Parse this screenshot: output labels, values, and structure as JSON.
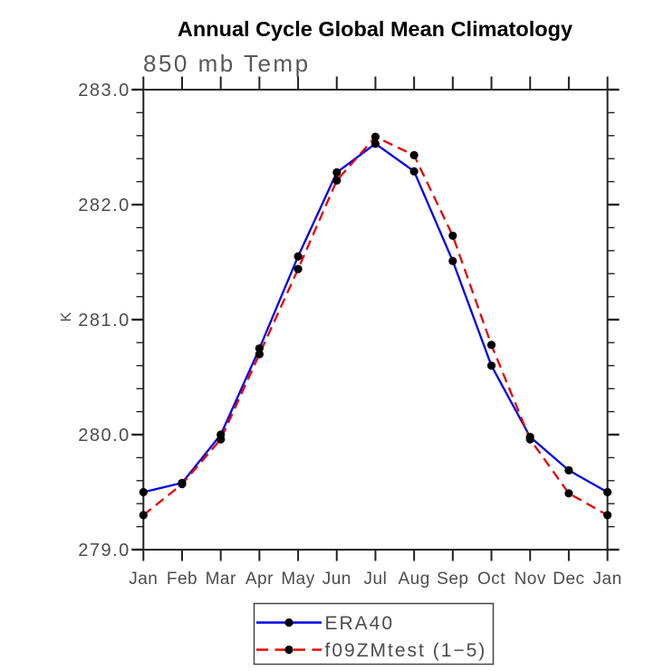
{
  "title": "Annual Cycle Global Mean Climatology",
  "subtitle": "850 mb Temp",
  "y_axis_unit": "K",
  "chart_data": {
    "type": "line",
    "title": "Annual Cycle Global Mean Climatology",
    "subtitle": "850 mb Temp",
    "ylabel": "K",
    "xlabel": "",
    "categories": [
      "Jan",
      "Feb",
      "Mar",
      "Apr",
      "May",
      "Jun",
      "Jul",
      "Aug",
      "Sep",
      "Oct",
      "Nov",
      "Dec",
      "Jan"
    ],
    "series": [
      {
        "name": "ERA40",
        "color": "#0000e6",
        "line_style": "solid",
        "marker": "black-dot",
        "values": [
          279.5,
          279.58,
          280.0,
          280.75,
          281.55,
          282.28,
          282.53,
          282.29,
          281.51,
          280.6,
          279.98,
          279.69,
          279.5
        ]
      },
      {
        "name": "f09ZMtest (1−5)",
        "color": "#e60000",
        "line_style": "dashed",
        "marker": "black-dot",
        "values": [
          279.3,
          279.57,
          279.96,
          280.7,
          281.44,
          282.21,
          282.59,
          282.43,
          281.73,
          280.78,
          279.96,
          279.49,
          279.3
        ]
      }
    ],
    "ylim": [
      279.0,
      283.0
    ],
    "ytick_major": [
      279.0,
      280.0,
      281.0,
      282.0,
      283.0
    ],
    "ytick_labels": [
      "279.0",
      "280.0",
      "281.0",
      "282.0",
      "283.0"
    ],
    "ytick_minor_step": 0.2,
    "grid": false,
    "legend_position": "bottom-center",
    "marker_color": "#000000",
    "frame_color": "#222222"
  }
}
